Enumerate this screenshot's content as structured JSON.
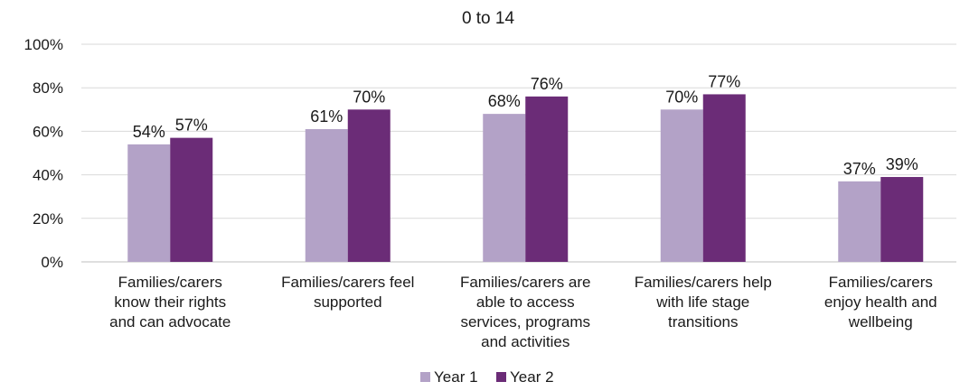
{
  "chart_data": {
    "type": "bar",
    "title": "0 to 14",
    "categories": [
      [
        "Families/carers",
        "know their rights",
        "and can advocate"
      ],
      [
        "Families/carers feel",
        "supported"
      ],
      [
        "Families/carers are",
        "able to access",
        "services, programs",
        "and activities"
      ],
      [
        "Families/carers help",
        "with life stage",
        "transitions"
      ],
      [
        "Families/carers",
        "enjoy health and",
        "wellbeing"
      ]
    ],
    "series": [
      {
        "name": "Year 1",
        "color": "#b3a2c7",
        "values": [
          54,
          61,
          68,
          70,
          37
        ],
        "labels": [
          "54%",
          "61%",
          "68%",
          "70%",
          "37%"
        ]
      },
      {
        "name": "Year 2",
        "color": "#6b2c77",
        "values": [
          57,
          70,
          76,
          77,
          39
        ],
        "labels": [
          "57%",
          "70%",
          "76%",
          "77%",
          "39%"
        ]
      }
    ],
    "ylim": [
      0,
      100
    ],
    "yticks": [
      0,
      20,
      40,
      60,
      80,
      100
    ],
    "ytick_labels": [
      "0%",
      "20%",
      "40%",
      "60%",
      "80%",
      "100%"
    ],
    "grid": true,
    "legend": "bottom"
  }
}
